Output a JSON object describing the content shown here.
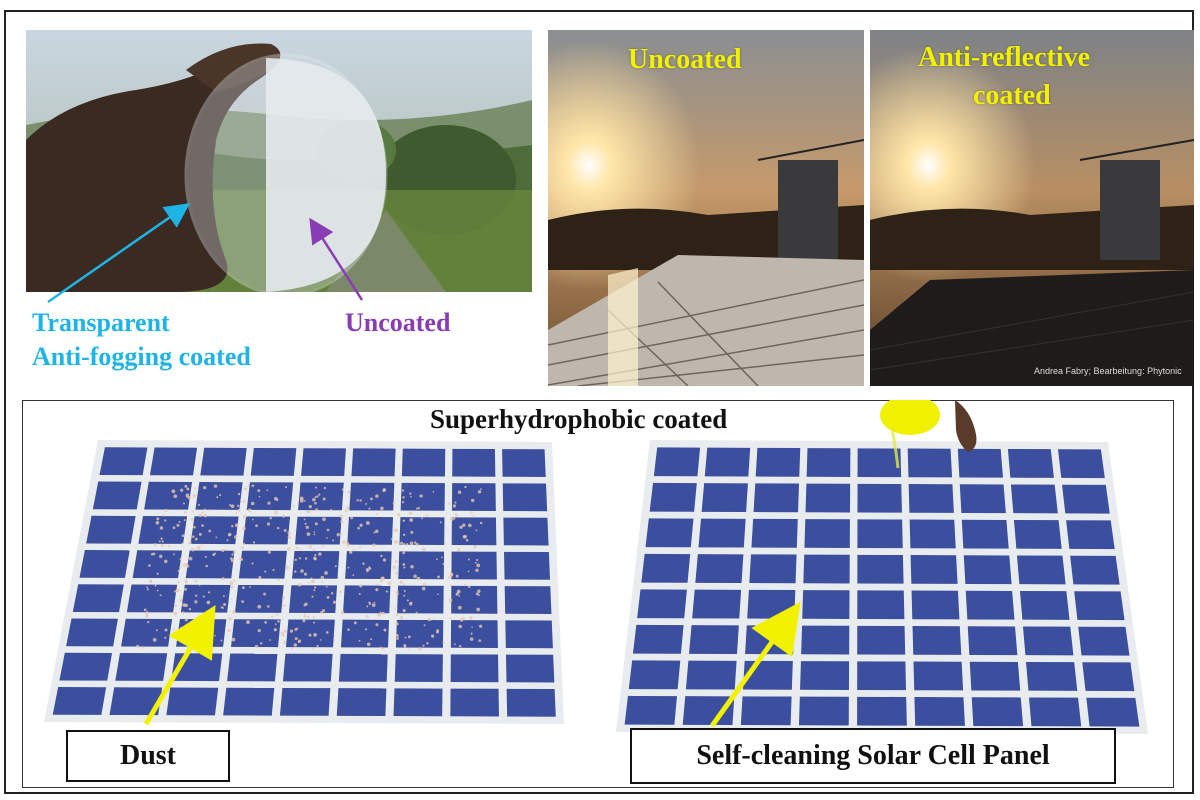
{
  "top_left": {
    "label_coated_line1": "Transparent",
    "label_coated_line2": "Anti-fogging coated",
    "label_uncoated": "Uncoated"
  },
  "top_right": {
    "left_label": "Uncoated",
    "right_label_line1": "Anti-reflective",
    "right_label_line2": "coated",
    "credit": "Andrea Fabry; Bearbeitung: Phytonic"
  },
  "bottom": {
    "title": "Superhydrophobic coated",
    "dust_label": "Dust",
    "self_cleaning_label": "Self-cleaning Solar Cell Panel"
  },
  "colors": {
    "coated_label": "#1eb4e6",
    "uncoated_label": "#8a3cb4",
    "highlight": "#f2f200",
    "panel_cell": "#3b4f9e"
  }
}
